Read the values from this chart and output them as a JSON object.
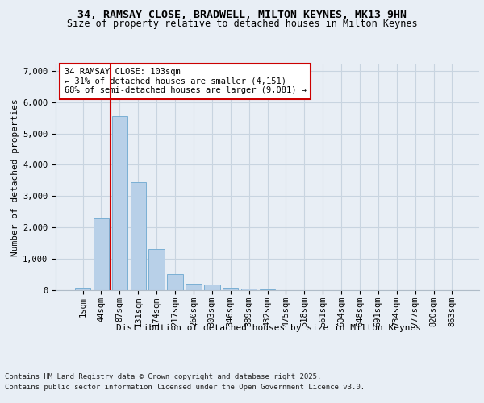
{
  "title_line1": "34, RAMSAY CLOSE, BRADWELL, MILTON KEYNES, MK13 9HN",
  "title_line2": "Size of property relative to detached houses in Milton Keynes",
  "xlabel": "Distribution of detached houses by size in Milton Keynes",
  "ylabel": "Number of detached properties",
  "footer_line1": "Contains HM Land Registry data © Crown copyright and database right 2025.",
  "footer_line2": "Contains public sector information licensed under the Open Government Licence v3.0.",
  "categories": [
    "1sqm",
    "44sqm",
    "87sqm",
    "131sqm",
    "174sqm",
    "217sqm",
    "260sqm",
    "303sqm",
    "346sqm",
    "389sqm",
    "432sqm",
    "475sqm",
    "518sqm",
    "561sqm",
    "604sqm",
    "648sqm",
    "691sqm",
    "734sqm",
    "777sqm",
    "820sqm",
    "863sqm"
  ],
  "values": [
    80,
    2300,
    5550,
    3450,
    1320,
    520,
    210,
    170,
    90,
    50,
    20,
    5,
    2,
    1,
    0,
    0,
    0,
    0,
    0,
    0,
    0
  ],
  "bar_color": "#b8d0e8",
  "bar_edge_color": "#7aafd4",
  "background_color": "#e8eef5",
  "grid_color": "#c8d4e0",
  "vline_color": "#cc0000",
  "vline_x_index": 2,
  "annotation_text": "34 RAMSAY CLOSE: 103sqm\n← 31% of detached houses are smaller (4,151)\n68% of semi-detached houses are larger (9,081) →",
  "annotation_box_color": "white",
  "annotation_box_edge": "#cc0000",
  "ylim": [
    0,
    7200
  ],
  "yticks": [
    0,
    1000,
    2000,
    3000,
    4000,
    5000,
    6000,
    7000
  ],
  "title1_fontsize": 9.5,
  "title2_fontsize": 8.5,
  "ylabel_fontsize": 8,
  "xlabel_fontsize": 8,
  "tick_fontsize": 7.5,
  "footer_fontsize": 6.5,
  "annot_fontsize": 7.5
}
